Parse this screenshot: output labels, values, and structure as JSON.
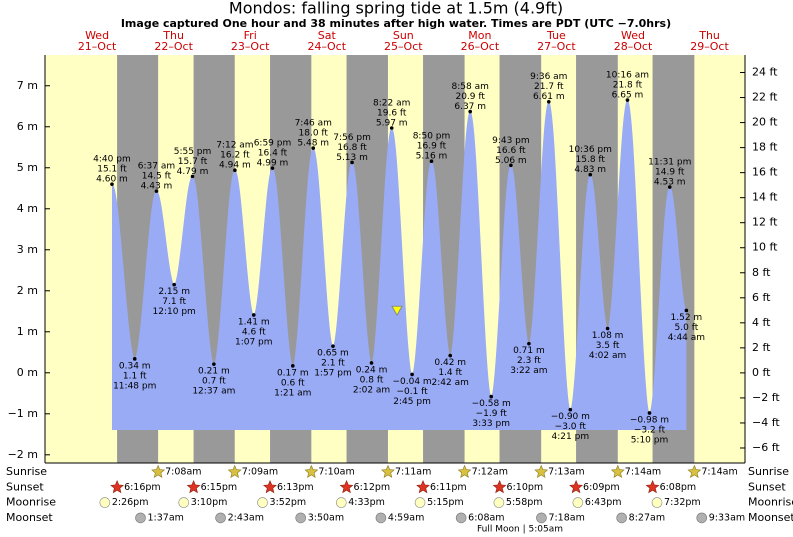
{
  "chart_data": {
    "type": "tide",
    "title": "Mondos: falling  spring tide at 1.5m (4.9ft)",
    "subtitle": "Image captured One hour and 38 minutes after high water. Times are PDT (UTC −7.0hrs)",
    "days": {
      "weekdays": [
        "Wed",
        "Thu",
        "Fri",
        "Sat",
        "Sun",
        "Mon",
        "Tue",
        "Wed",
        "Thu"
      ],
      "dates": [
        "21–Oct",
        "22–Oct",
        "23–Oct",
        "24–Oct",
        "25–Oct",
        "26–Oct",
        "27–Oct",
        "28–Oct",
        "29–Oct"
      ]
    },
    "times": [
      "4:40 pm",
      "11:48 pm",
      "6:37 am",
      "12:10 pm",
      "5:55 pm",
      "12:37 am",
      "7:12 am",
      "1:07 pm",
      "6:59 pm",
      "1:21 am",
      "7:46 am",
      "1:57 pm",
      "7:56 pm",
      "2:02 am",
      "8:22 am",
      "2:45 pm",
      "8:50 pm",
      "2:42 am",
      "8:58 am",
      "3:33 pm",
      "9:43 pm",
      "3:22 am",
      "9:36 am",
      "4:21 pm",
      "10:36 pm",
      "4:02 am",
      "10:16 am",
      "5:10 pm",
      "11:31 pm",
      "4:44 am"
    ],
    "values": [
      4.6,
      0.34,
      4.43,
      2.15,
      4.79,
      0.21,
      4.94,
      1.41,
      4.99,
      0.17,
      5.48,
      0.65,
      5.13,
      0.24,
      5.97,
      -0.04,
      5.16,
      0.42,
      6.37,
      -0.58,
      5.06,
      0.71,
      6.61,
      -0.9,
      4.83,
      1.08,
      6.65,
      -0.98,
      4.53,
      1.52
    ],
    "value_labels": [
      "4.60 m",
      "0.34 m",
      "4.43 m",
      "2.15 m",
      "4.79 m",
      "0.21 m",
      "4.94 m",
      "1.41 m",
      "4.99 m",
      "0.17 m",
      "5.48 m",
      "0.65 m",
      "5.13 m",
      "0.24 m",
      "5.97 m",
      "−0.04 m",
      "5.16 m",
      "0.42 m",
      "6.37 m",
      "−0.58 m",
      "5.06 m",
      "0.71 m",
      "6.61 m",
      "−0.90 m",
      "4.83 m",
      "1.08 m",
      "6.65 m",
      "−0.98 m",
      "4.53 m",
      "1.52 m"
    ],
    "feet_labels": [
      "15.1 ft",
      "1.1 ft",
      "14.5 ft",
      "7.1 ft",
      "15.7 ft",
      "0.7 ft",
      "16.2 ft",
      "4.6 ft",
      "16.4 ft",
      "0.6 ft",
      "18.0 ft",
      "2.1 ft",
      "16.8 ft",
      "0.8 ft",
      "19.6 ft",
      "−0.1 ft",
      "16.9 ft",
      "1.4 ft",
      "20.9 ft",
      "−1.9 ft",
      "16.6 ft",
      "2.3 ft",
      "21.7 ft",
      "−3.0 ft",
      "15.8 ft",
      "3.5 ft",
      "21.8 ft",
      "−3.2 ft",
      "14.9 ft",
      "5.0 ft"
    ],
    "current_level": 1.5,
    "color": "#9aabf5",
    "ylim": [
      -2.2,
      7.75
    ],
    "yticks": [
      {
        "value": -2,
        "label": "−2 m"
      },
      {
        "value": -1,
        "label": "−1 m"
      },
      {
        "value": 0,
        "label": "0 m"
      },
      {
        "value": 1,
        "label": "1 m"
      },
      {
        "value": 2,
        "label": "2 m"
      },
      {
        "value": 3,
        "label": "3 m"
      },
      {
        "value": 4,
        "label": "4 m"
      },
      {
        "value": 5,
        "label": "5 m"
      },
      {
        "value": 6,
        "label": "6 m"
      },
      {
        "value": 7,
        "label": "7 m"
      }
    ],
    "y2lim": [
      -7.2,
      25.4
    ],
    "y2ticks": [
      {
        "value": -6,
        "label": "−6 ft"
      },
      {
        "value": -4,
        "label": "−4 ft"
      },
      {
        "value": -2,
        "label": "−2 ft"
      },
      {
        "value": 0,
        "label": "0 ft"
      },
      {
        "value": 2,
        "label": "2 ft"
      },
      {
        "value": 4,
        "label": "4 ft"
      },
      {
        "value": 6,
        "label": "6 ft"
      },
      {
        "value": 8,
        "label": "8 ft"
      },
      {
        "value": 10,
        "label": "10 ft"
      },
      {
        "value": 12,
        "label": "12 ft"
      },
      {
        "value": 14,
        "label": "14 ft"
      },
      {
        "value": 16,
        "label": "16 ft"
      },
      {
        "value": 18,
        "label": "18 ft"
      },
      {
        "value": 20,
        "label": "20 ft"
      },
      {
        "value": 22,
        "label": "22 ft"
      },
      {
        "value": 24,
        "label": "24 ft"
      }
    ],
    "astro": {
      "rows": [
        {
          "name": "Sunrise",
          "times": [
            "7:08am",
            "7:09am",
            "7:10am",
            "7:11am",
            "7:12am",
            "7:13am",
            "7:14am",
            "7:14am"
          ]
        },
        {
          "name": "Sunset",
          "times": [
            "6:16pm",
            "6:15pm",
            "6:13pm",
            "6:12pm",
            "6:11pm",
            "6:10pm",
            "6:09pm",
            "6:08pm"
          ]
        },
        {
          "name": "Moonrise",
          "times": [
            "2:26pm",
            "3:10pm",
            "3:52pm",
            "4:33pm",
            "5:15pm",
            "5:58pm",
            "6:43pm",
            "7:32pm"
          ]
        },
        {
          "name": "Moonset",
          "times": [
            "1:37am",
            "2:43am",
            "3:50am",
            "4:59am",
            "6:08am",
            "7:18am",
            "8:27am",
            "9:33am"
          ]
        }
      ],
      "note": "Full Moon | 5:05am"
    }
  }
}
